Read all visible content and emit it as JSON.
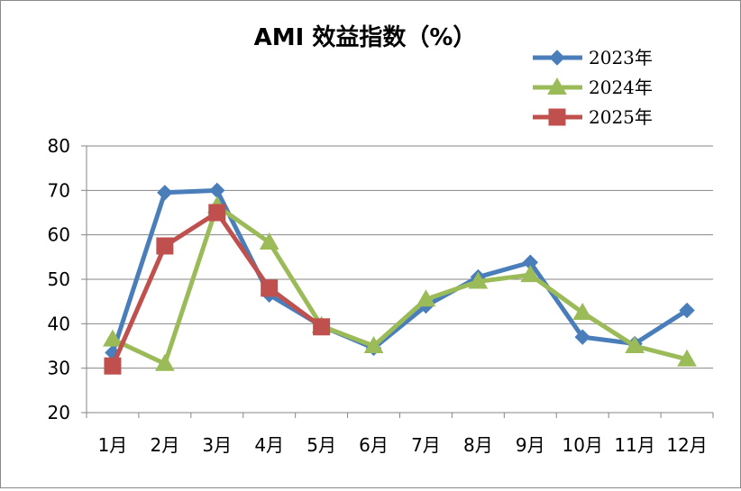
{
  "chart_data": {
    "type": "line",
    "title": "AMI 效益指数（%）",
    "xlabel": "",
    "ylabel": "",
    "categories": [
      "1月",
      "2月",
      "3月",
      "4月",
      "5月",
      "6月",
      "7月",
      "8月",
      "9月",
      "10月",
      "11月",
      "12月"
    ],
    "ylim": [
      20,
      80
    ],
    "yticks": [
      20,
      30,
      40,
      50,
      60,
      70,
      80
    ],
    "grid": true,
    "legend_position": "top-right",
    "series": [
      {
        "name": "2023年",
        "marker": "diamond",
        "color": "#4a7ebb",
        "values": [
          33.5,
          69.5,
          70.0,
          46.5,
          39.5,
          34.5,
          44.0,
          50.5,
          53.8,
          37.0,
          35.5,
          43.0
        ]
      },
      {
        "name": "2024年",
        "marker": "triangle",
        "color": "#9bbb59",
        "values": [
          36.5,
          31.0,
          66.5,
          58.3,
          39.5,
          35.0,
          45.5,
          49.5,
          51.0,
          42.5,
          35.0,
          32.0
        ]
      },
      {
        "name": "2025年",
        "marker": "square",
        "color": "#c0504d",
        "values": [
          30.5,
          57.5,
          65.0,
          48.0,
          39.3,
          null,
          null,
          null,
          null,
          null,
          null,
          null
        ]
      }
    ]
  }
}
